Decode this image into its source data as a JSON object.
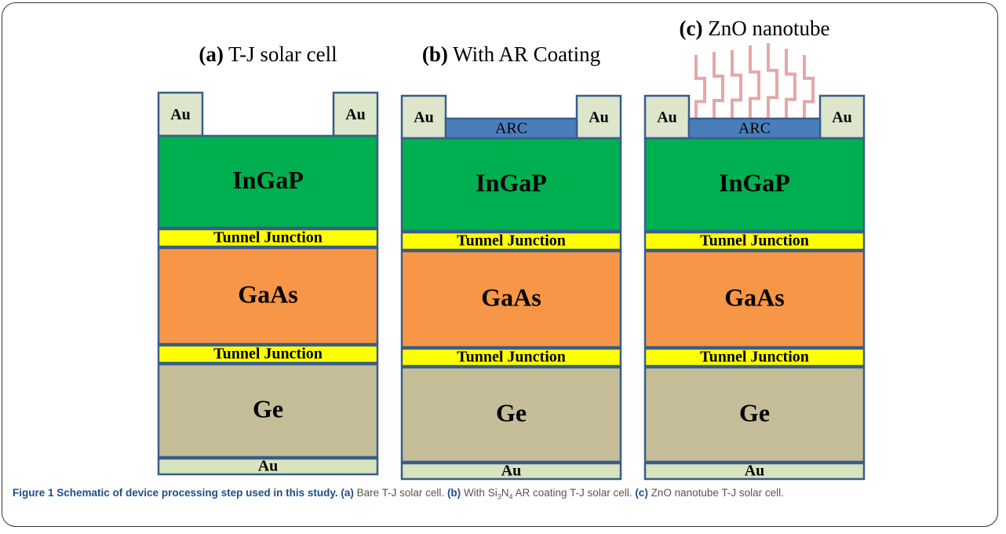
{
  "panels": [
    {
      "id": "a",
      "title_tag": "(a)",
      "title_text": " T-J solar cell",
      "top": {
        "left_contact": "Au",
        "right_contact": "Au",
        "arc": null,
        "nanotube": false
      },
      "layers": {
        "ingap": "InGaP",
        "tunnel1": "Tunnel Junction",
        "gaas": "GaAs",
        "tunnel2": "Tunnel Junction",
        "ge": "Ge",
        "bottom": "Au"
      }
    },
    {
      "id": "b",
      "title_tag": "(b)",
      "title_text": " With AR Coating",
      "top": {
        "left_contact": "Au",
        "right_contact": "Au",
        "arc": "ARC",
        "nanotube": false
      },
      "layers": {
        "ingap": "InGaP",
        "tunnel1": "Tunnel Junction",
        "gaas": "GaAs",
        "tunnel2": "Tunnel Junction",
        "ge": "Ge",
        "bottom": "Au"
      }
    },
    {
      "id": "c",
      "title_tag": "(c)",
      "title_text": " ZnO nanotube",
      "top": {
        "left_contact": "Au",
        "right_contact": "Au",
        "arc": "ARC",
        "nanotube": true
      },
      "layers": {
        "ingap": "InGaP",
        "tunnel1": "Tunnel Junction",
        "gaas": "GaAs",
        "tunnel2": "Tunnel Junction",
        "ge": "Ge",
        "bottom": "Au"
      }
    }
  ],
  "colors": {
    "au": "#dde6cb",
    "arc": "#4a7ebb",
    "ingap": "#00b050",
    "tunnel": "#ffff00",
    "gaas": "#f79646",
    "ge": "#c4bd97",
    "bottom_au": "#d7e4bd",
    "outline": "#385d8a",
    "nanotube": "#e6a7a7"
  },
  "caption": {
    "lead": "Figure 1 Schematic of device processing step used in this study.",
    "a_tag": "(a)",
    "a_text": " Bare T-J solar cell. ",
    "b_tag": "(b)",
    "b_text_1": " With Si",
    "b_sub_1": "3",
    "b_text_2": "N",
    "b_sub_2": "4",
    "b_text_3": " AR coating T-J solar cell. ",
    "c_tag": "(c)",
    "c_text": " ZnO nanotube T-J solar cell."
  }
}
